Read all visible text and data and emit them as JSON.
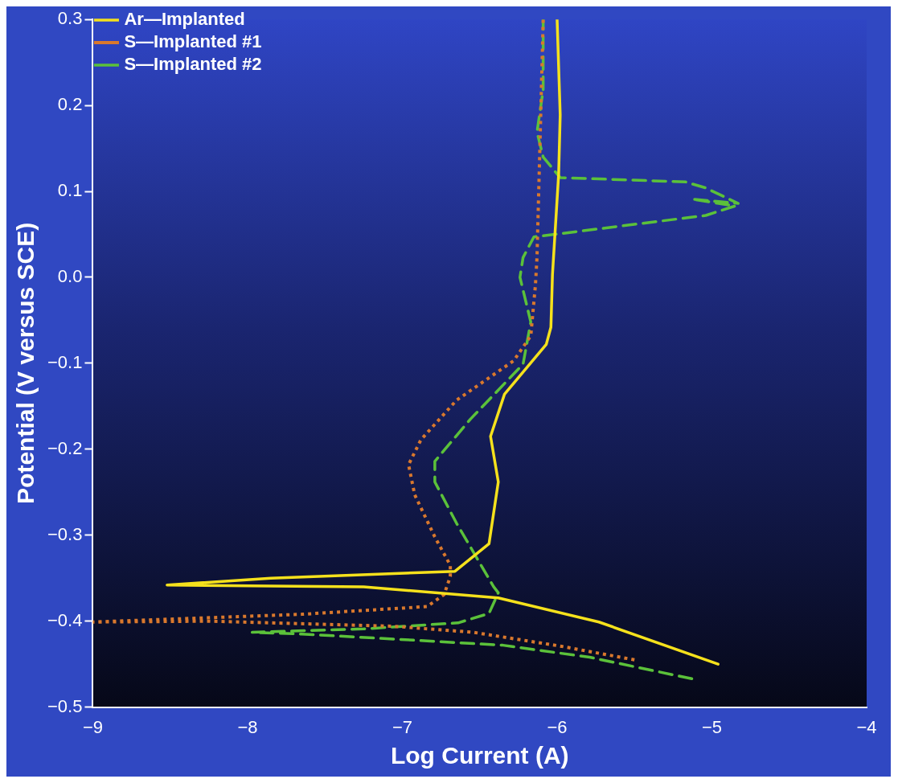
{
  "chart_data": {
    "type": "line",
    "xlabel": "Log Current (A)",
    "ylabel": "Potential (V versus SCE)",
    "xlim": [
      -9,
      -4
    ],
    "xticks": [
      {
        "value": -9,
        "label": "−9"
      },
      {
        "value": -8,
        "label": "−8"
      },
      {
        "value": -7,
        "label": "−7"
      },
      {
        "value": -6,
        "label": "−6"
      },
      {
        "value": -5,
        "label": "−5"
      },
      {
        "value": -4,
        "label": "−4"
      }
    ],
    "ylim": [
      -0.5,
      0.3
    ],
    "yticks": [
      {
        "value": -0.5,
        "label": "−0.5"
      },
      {
        "value": -0.4,
        "label": "−0.4"
      },
      {
        "value": -0.3,
        "label": "−0.3"
      },
      {
        "value": -0.2,
        "label": "−0.2"
      },
      {
        "value": -0.1,
        "label": "−0.1"
      },
      {
        "value": 0,
        "label": "0.0"
      },
      0.1,
      0.2,
      0.3
    ],
    "grid": false,
    "legend": "top left",
    "marker": "none",
    "series": [
      {
        "name": "Ar—Implanted",
        "color": "#f5e11c",
        "line_style": "solid",
        "x": [
          -4.96,
          -5.73,
          -6.38,
          -7.25,
          -8.52,
          -7.85,
          -6.66,
          -6.44,
          -6.38,
          -6.43,
          -6.34,
          -6.07,
          -6.04,
          -6.03,
          -5.99,
          -5.98,
          -6.0
        ],
        "values": [
          -0.45,
          -0.401,
          -0.373,
          -0.36,
          -0.358,
          -0.35,
          -0.342,
          -0.31,
          -0.238,
          -0.185,
          -0.136,
          -0.078,
          -0.058,
          0.003,
          0.12,
          0.189,
          0.3
        ]
      },
      {
        "name": "S—Implanted #1",
        "color": "#d9782d",
        "line_style": "dotted",
        "x": [
          -5.5,
          -5.98,
          -6.54,
          -7.05,
          -8.25,
          -9.0,
          -7.65,
          -6.84,
          -6.73,
          -6.69,
          -6.69,
          -6.79,
          -6.92,
          -6.96,
          -6.88,
          -6.65,
          -6.28,
          -6.17,
          -6.14,
          -6.13,
          -6.11,
          -6.09
        ],
        "values": [
          -0.445,
          -0.429,
          -0.413,
          -0.406,
          -0.4,
          -0.401,
          -0.392,
          -0.383,
          -0.369,
          -0.348,
          -0.335,
          -0.302,
          -0.253,
          -0.218,
          -0.189,
          -0.143,
          -0.097,
          -0.068,
          -0.009,
          0.023,
          0.16,
          0.3
        ]
      },
      {
        "name": "S—Implanted #2",
        "color": "#5bc13a",
        "line_style": "dashed",
        "x": [
          -5.13,
          -5.79,
          -6.35,
          -6.84,
          -7.65,
          -7.97,
          -7.25,
          -6.64,
          -6.44,
          -6.38,
          -6.41,
          -6.65,
          -6.79,
          -6.79,
          -6.56,
          -6.22,
          -6.17,
          -6.24,
          -6.22,
          -6.15,
          -5.04,
          -4.85,
          -5.13,
          -4.83,
          -5.04,
          -5.17,
          -5.98,
          -6.09,
          -6.13,
          -6.09,
          -6.09
        ],
        "values": [
          -0.467,
          -0.442,
          -0.428,
          -0.423,
          -0.415,
          -0.413,
          -0.409,
          -0.402,
          -0.391,
          -0.367,
          -0.36,
          -0.286,
          -0.238,
          -0.214,
          -0.165,
          -0.101,
          -0.052,
          0.0,
          0.023,
          0.047,
          0.072,
          0.083,
          0.091,
          0.086,
          0.104,
          0.111,
          0.116,
          0.14,
          0.169,
          0.218,
          0.3
        ]
      }
    ]
  }
}
